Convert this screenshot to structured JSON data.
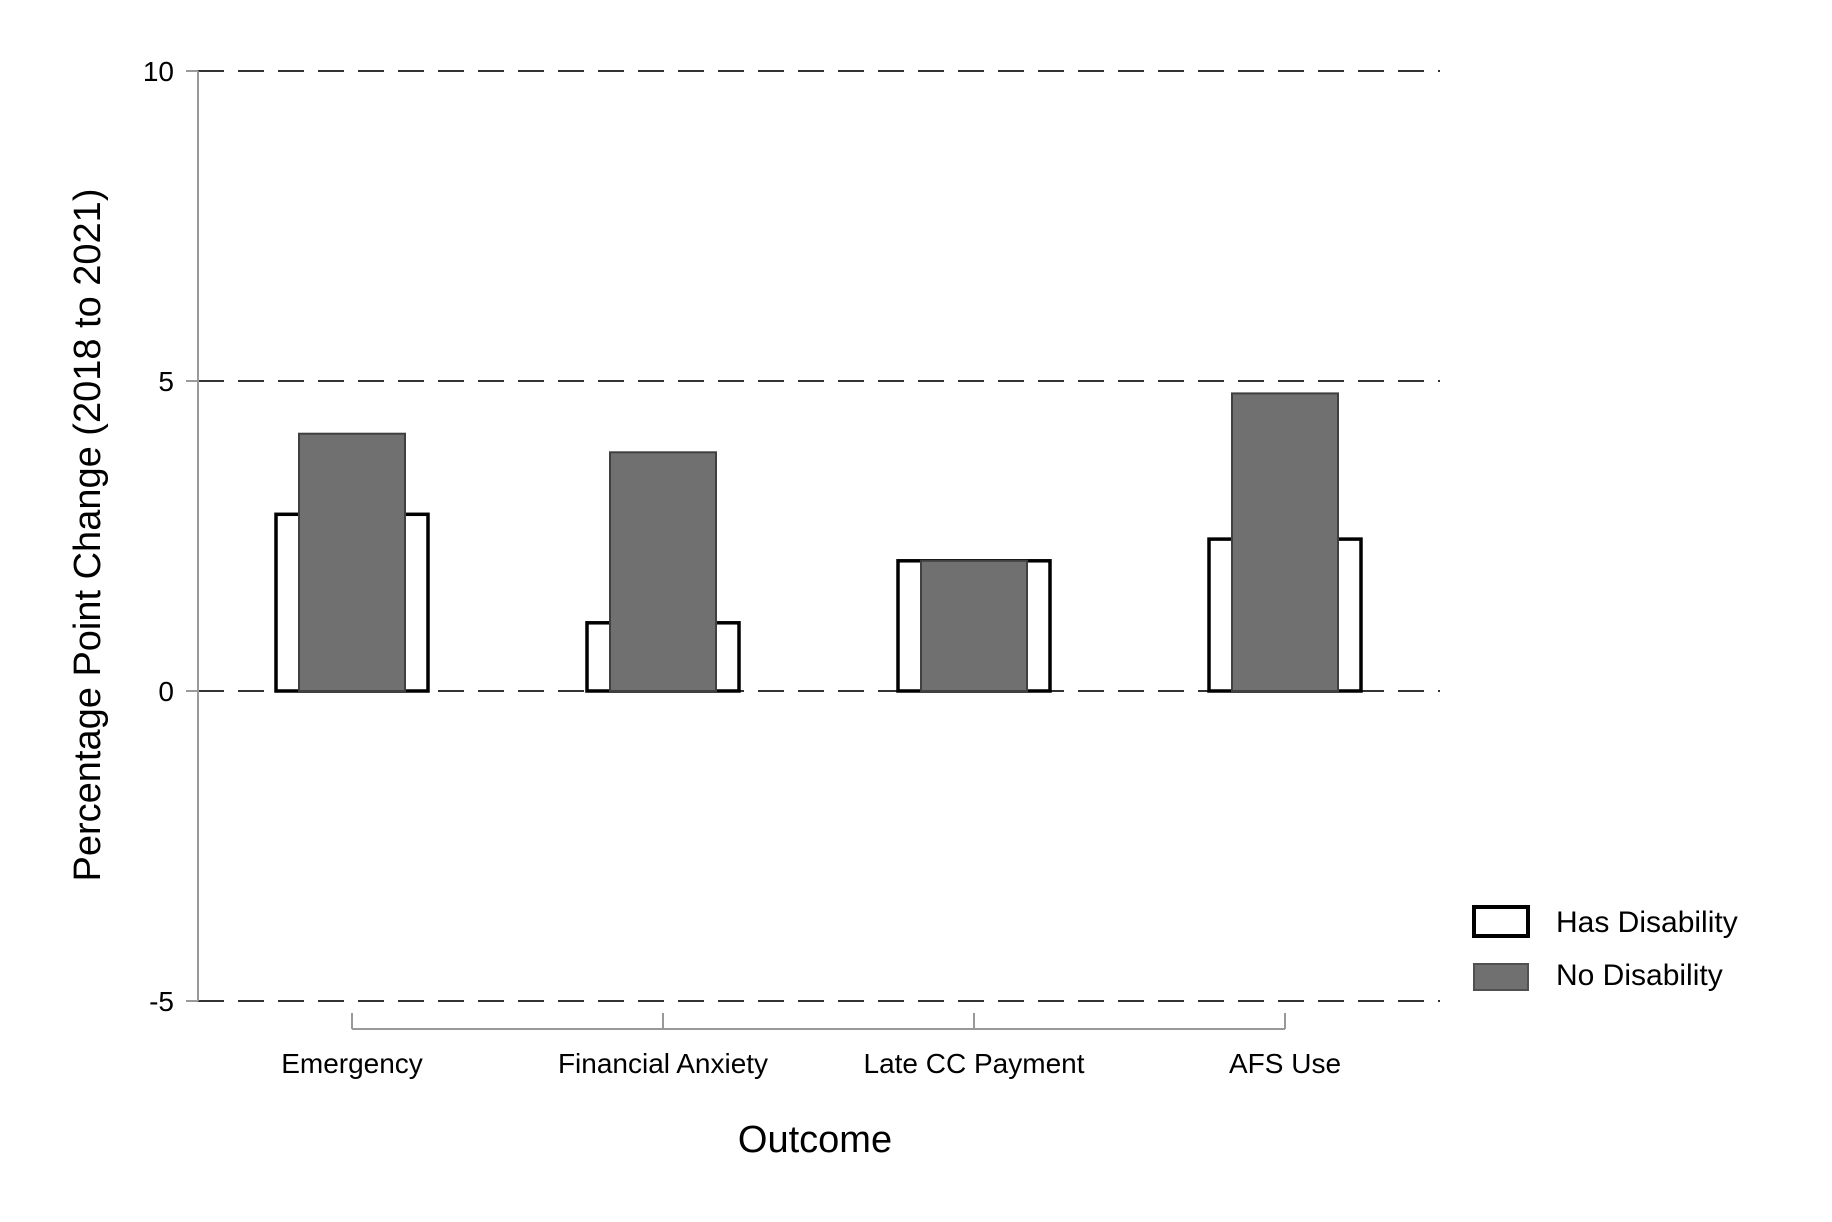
{
  "chart_data": {
    "type": "bar",
    "xlabel": "Outcome",
    "ylabel": "Percentage Point Change (2018 to 2021)",
    "ylim": [
      -5,
      10
    ],
    "yticks": [
      -5,
      0,
      5,
      10
    ],
    "ytick_labels": [
      "-5",
      "0",
      "5",
      "10"
    ],
    "grid": true,
    "grid_style": "dashed",
    "categories": [
      "Emergency",
      "Financial Anxiety",
      "Late CC Payment",
      "AFS Use"
    ],
    "series": [
      {
        "name": "Has Disability",
        "values": [
          2.85,
          1.1,
          2.1,
          2.45
        ],
        "fill": "#ffffff",
        "stroke": "#000000"
      },
      {
        "name": "No Disability",
        "values": [
          4.15,
          3.85,
          2.1,
          4.8
        ],
        "fill": "#707070",
        "stroke": "#404040"
      }
    ],
    "legend_position": "right"
  }
}
